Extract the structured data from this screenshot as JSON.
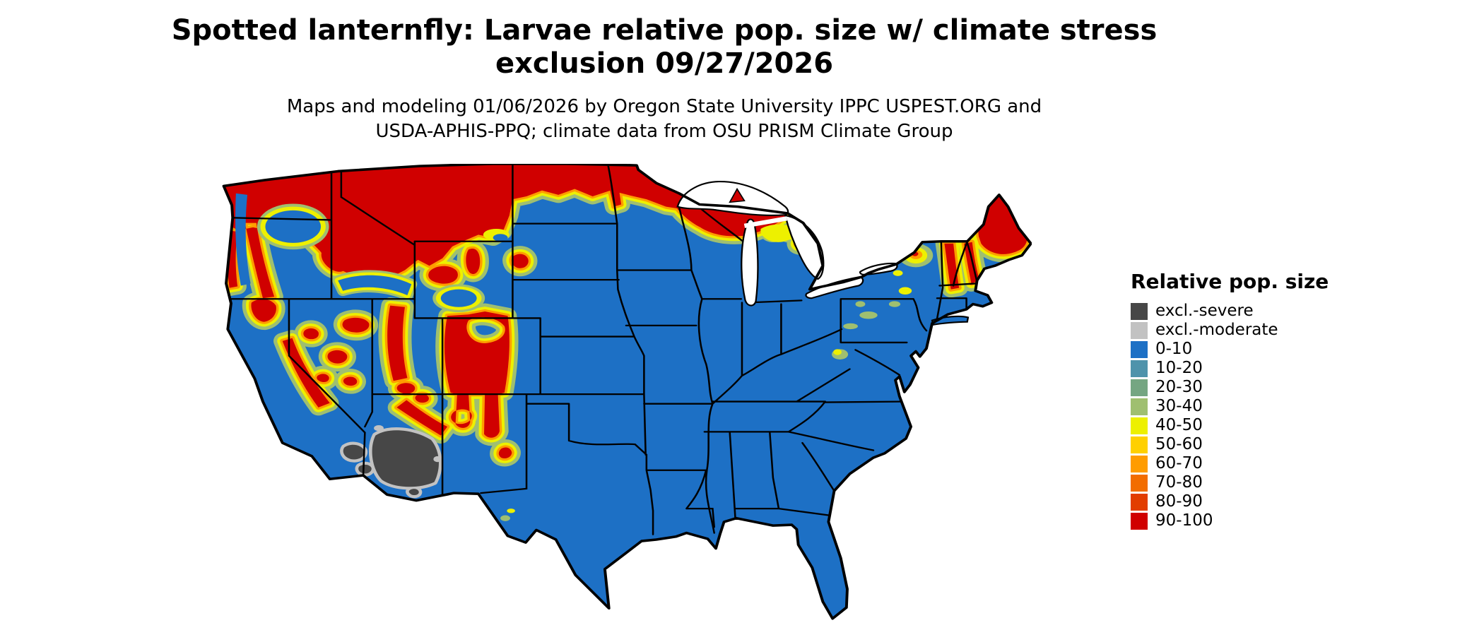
{
  "header": {
    "title_line1": "Spotted lanternfly: Larvae relative pop. size w/ climate stress",
    "title_line2": "exclusion 09/27/2026",
    "subtitle_line1": "Maps and modeling 01/06/2026 by Oregon State University IPPC USPEST.ORG and",
    "subtitle_line2": "USDA-APHIS-PPQ; climate data from OSU PRISM Climate Group"
  },
  "legend": {
    "title": "Relative pop. size",
    "items": [
      {
        "label": "excl.-severe",
        "color": "#474747"
      },
      {
        "label": "excl.-moderate",
        "color": "#c2c2c2"
      },
      {
        "label": "0-10",
        "color": "#1d70c5"
      },
      {
        "label": "10-20",
        "color": "#4f93ab"
      },
      {
        "label": "20-30",
        "color": "#75a682"
      },
      {
        "label": "30-40",
        "color": "#9fbf70"
      },
      {
        "label": "40-50",
        "color": "#edf000"
      },
      {
        "label": "50-60",
        "color": "#ffd000"
      },
      {
        "label": "60-70",
        "color": "#ff9c00"
      },
      {
        "label": "70-80",
        "color": "#f26d00"
      },
      {
        "label": "80-90",
        "color": "#e23d00"
      },
      {
        "label": "90-100",
        "color": "#d00000"
      }
    ]
  },
  "map": {
    "region": "Contiguous United States",
    "colors": {
      "base_0_10": "#1d70c5",
      "high_90_100": "#d00000",
      "fringe_40_50": "#edf000",
      "fringe_30_40": "#9fbf70",
      "fringe_60_70": "#ff9c00",
      "excluded_severe": "#474747",
      "excluded_moderate": "#c2c2c2",
      "state_borders": "#000000",
      "water_and_background": "#ffffff"
    }
  }
}
